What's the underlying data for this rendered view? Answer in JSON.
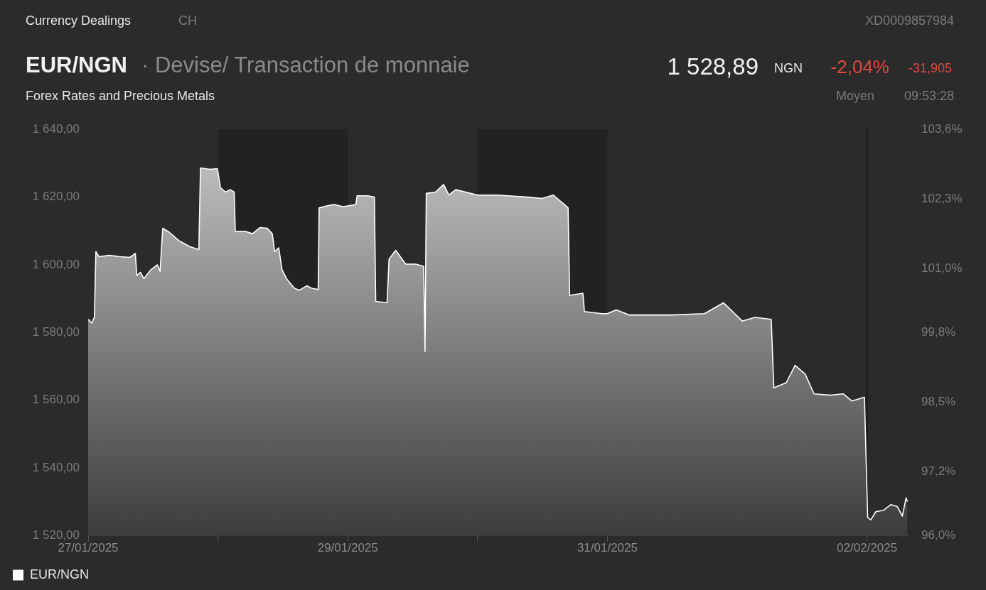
{
  "chart_data": {
    "type": "area",
    "title": "EUR/NGN",
    "subtitle": "· Devise/ Transaction de monnaie",
    "annotations": [
      "Currency Dealings",
      "CH",
      "XD0009857984",
      "1 528,89",
      "NGN",
      "-2,04%",
      "-31,905",
      "Forex Rates and Precious Metals",
      "Moyen",
      "09:53:28"
    ],
    "x": [
      "2025-01-27T00:00",
      "2025-01-27T00:40",
      "2025-01-27T01:09",
      "2025-01-27T01:26",
      "2025-01-27T02:01",
      "2025-01-27T03:55",
      "2025-01-27T05:50",
      "2025-01-27T07:45",
      "2025-01-27T08:43",
      "2025-01-27T09:00",
      "2025-01-27T09:39",
      "2025-01-27T10:19",
      "2025-01-27T11:34",
      "2025-01-27T12:49",
      "2025-01-27T13:18",
      "2025-01-27T13:47",
      "2025-01-27T14:56",
      "2025-01-27T16:49",
      "2025-01-27T18:45",
      "2025-01-27T20:28",
      "2025-01-27T20:46",
      "2025-01-27T22:34",
      "2025-01-27T23:54",
      "2025-01-28T00:27",
      "2025-01-28T01:22",
      "2025-01-28T02:17",
      "2025-01-28T03:00",
      "2025-01-28T03:12",
      "2025-01-28T05:01",
      "2025-01-28T06:23",
      "2025-01-28T07:45",
      "2025-01-28T09:07",
      "2025-01-28T10:02",
      "2025-01-28T10:29",
      "2025-01-28T11:14",
      "2025-01-28T11:51",
      "2025-01-28T12:46",
      "2025-01-28T14:08",
      "2025-01-28T15:03",
      "2025-01-28T16:25",
      "2025-01-28T17:20",
      "2025-01-28T18:32",
      "2025-01-28T18:42",
      "2025-01-28T20:05",
      "2025-01-28T21:27",
      "2025-01-28T23:05",
      "2025-01-29T00:00",
      "2025-01-29T01:29",
      "2025-01-29T01:44",
      "2025-01-29T03:42",
      "2025-01-29T04:55",
      "2025-01-29T05:10",
      "2025-01-29T07:16",
      "2025-01-29T07:38",
      "2025-01-29T08:51",
      "2025-01-29T10:42",
      "2025-01-29T12:33",
      "2025-01-29T14:02",
      "2025-01-29T14:17",
      "2025-01-29T14:31",
      "2025-01-29T16:15",
      "2025-01-29T17:43",
      "2025-01-29T18:42",
      "2025-01-29T19:57",
      "2025-01-30T00:00",
      "2025-01-30T03:42",
      "2025-01-30T09:12",
      "2025-01-30T11:56",
      "2025-01-30T14:00",
      "2025-01-30T16:03",
      "2025-01-30T16:44",
      "2025-01-30T17:01",
      "2025-01-30T19:28",
      "2025-01-30T19:45",
      "2025-01-30T22:54",
      "2025-01-31T00:00",
      "2025-01-31T01:38",
      "2025-01-31T03:59",
      "2025-01-31T12:06",
      "2025-01-31T17:57",
      "2025-01-31T21:27",
      "2025-02-01T00:55",
      "2025-02-01T03:16",
      "2025-02-01T06:17",
      "2025-02-01T06:46",
      "2025-02-01T09:04",
      "2025-02-01T10:42",
      "2025-02-01T12:35",
      "2025-02-01T14:12",
      "2025-02-01T17:14",
      "2025-02-01T19:35",
      "2025-02-01T21:13",
      "2025-02-01T23:31",
      "2025-02-02T00:07",
      "2025-02-02T00:42",
      "2025-02-02T01:38",
      "2025-02-02T03:01",
      "2025-02-02T04:25",
      "2025-02-02T05:36",
      "2025-02-02T06:32",
      "2025-02-02T07:13",
      "2025-02-02T07:28"
    ],
    "series": [
      {
        "name": "EUR/NGN",
        "color": "#ffffff",
        "values": [
          1583.9,
          1582.8,
          1584.5,
          1603.9,
          1602.4,
          1602.8,
          1602.4,
          1602.2,
          1603.4,
          1596.8,
          1597.8,
          1595.9,
          1598.5,
          1600.0,
          1598.1,
          1610.8,
          1609.7,
          1607.1,
          1605.4,
          1604.5,
          1628.6,
          1628.2,
          1628.4,
          1622.8,
          1621.5,
          1622.2,
          1621.5,
          1609.9,
          1609.9,
          1609.2,
          1611.0,
          1610.8,
          1609.2,
          1603.9,
          1605.0,
          1598.5,
          1595.7,
          1593.1,
          1592.5,
          1593.8,
          1593.1,
          1592.7,
          1616.8,
          1617.4,
          1617.8,
          1617.2,
          1617.4,
          1617.8,
          1620.4,
          1620.4,
          1620.0,
          1589.2,
          1588.8,
          1601.7,
          1604.3,
          1600.2,
          1600.2,
          1599.6,
          1574.4,
          1621.1,
          1621.5,
          1623.7,
          1620.6,
          1622.2,
          1620.6,
          1620.6,
          1620.0,
          1619.6,
          1620.6,
          1617.8,
          1616.8,
          1591.0,
          1591.6,
          1586.2,
          1585.6,
          1585.6,
          1586.7,
          1585.2,
          1585.2,
          1585.6,
          1588.8,
          1583.4,
          1584.5,
          1583.9,
          1563.7,
          1565.2,
          1570.3,
          1567.7,
          1561.9,
          1561.5,
          1561.9,
          1559.8,
          1560.9,
          1525.4,
          1524.7,
          1527.1,
          1527.5,
          1529.2,
          1528.6,
          1525.8,
          1531.2,
          1530.1
        ]
      }
    ],
    "xlim": [
      "2025-01-27",
      "2025-02-02T07:40"
    ],
    "xticks": [
      {
        "value": "2025-01-27",
        "label": "27/01/2025"
      },
      {
        "value": "2025-01-28",
        "label": null
      },
      {
        "value": "2025-01-29",
        "label": "29/01/2025"
      },
      {
        "value": "2025-01-30",
        "label": null
      },
      {
        "value": "2025-01-31",
        "label": "31/01/2025"
      },
      {
        "value": "2025-02-02",
        "label": "02/02/2025"
      }
    ],
    "ylim": [
      1520,
      1640
    ],
    "yticks": [
      {
        "value": 1520,
        "label": "1 520,00"
      },
      {
        "value": 1540,
        "label": "1 540,00"
      },
      {
        "value": 1560,
        "label": "1 560,00"
      },
      {
        "value": 1580,
        "label": "1 580,00"
      },
      {
        "value": 1600,
        "label": "1 600,00"
      },
      {
        "value": 1620,
        "label": "1 620,00"
      },
      {
        "value": 1640,
        "label": "1 640,00"
      }
    ],
    "y2lim": [
      96.0,
      103.6
    ],
    "y2ticks": [
      {
        "value": 96.0,
        "label": "96,0%"
      },
      {
        "value": 97.2,
        "label": "97,2%"
      },
      {
        "value": 98.5,
        "label": "98,5%"
      },
      {
        "value": 99.8,
        "label": "99,8%"
      },
      {
        "value": 101.0,
        "label": "101,0%"
      },
      {
        "value": 102.3,
        "label": "102,3%"
      },
      {
        "value": 103.6,
        "label": "103,6%"
      }
    ],
    "bands": [
      {
        "axis": "x",
        "from": "2025-01-28",
        "to": "2025-01-29",
        "color": "#222222"
      },
      {
        "axis": "x",
        "from": "2025-01-30",
        "to": "2025-01-31",
        "color": "#222222"
      }
    ],
    "ref_lines": [
      {
        "axis": "x",
        "value": "2025-02-02",
        "color": "#1a1a1a"
      }
    ],
    "legend": "bottom left",
    "marker": "none"
  }
}
